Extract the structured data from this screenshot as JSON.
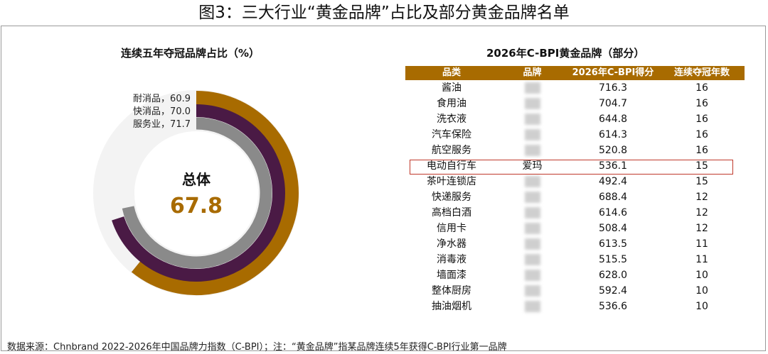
{
  "title": "图3：三大行业“黄金品牌”占比及部分黄金品牌名单",
  "chart_data": [
    {
      "type": "radial-bar",
      "title": "连续五年夺冠品牌占比（%）",
      "unit": "%",
      "max": 100,
      "series": [
        {
          "name": "耐消品",
          "label": "耐消品，60.9",
          "value": 60.9,
          "color": "#a86b00"
        },
        {
          "name": "快消品",
          "label": "快消品，70.0",
          "value": 70.0,
          "color": "#4a1a45"
        },
        {
          "name": "服务业",
          "label": "服务业，71.7",
          "value": 71.7,
          "color": "#8a8a8a"
        }
      ],
      "center": {
        "label": "总体",
        "value": "67.8"
      }
    },
    {
      "type": "table",
      "title": "2026年C-BPI黄金品牌（部分）",
      "columns": [
        "品类",
        "品牌",
        "2026年C-BPI得分",
        "连续夺冠年数"
      ],
      "rows": [
        [
          "酱油",
          "",
          "716.3",
          "16"
        ],
        [
          "食用油",
          "",
          "704.7",
          "16"
        ],
        [
          "洗衣液",
          "",
          "644.8",
          "16"
        ],
        [
          "汽车保险",
          "",
          "614.3",
          "16"
        ],
        [
          "航空服务",
          "",
          "520.8",
          "16"
        ],
        [
          "电动自行车",
          "爱玛",
          "536.1",
          "15"
        ],
        [
          "茶叶连锁店",
          "",
          "492.4",
          "15"
        ],
        [
          "快递服务",
          "",
          "688.4",
          "12"
        ],
        [
          "高档白酒",
          "",
          "614.6",
          "12"
        ],
        [
          "信用卡",
          "",
          "508.4",
          "12"
        ],
        [
          "净水器",
          "",
          "613.5",
          "11"
        ],
        [
          "消毒液",
          "",
          "515.5",
          "11"
        ],
        [
          "墙面漆",
          "",
          "628.0",
          "10"
        ],
        [
          "整体厨房",
          "",
          "592.4",
          "10"
        ],
        [
          "抽油烟机",
          "",
          "536.6",
          "10"
        ]
      ],
      "highlight_row": 5,
      "header_color": "#a86b00",
      "highlight_color": "#c0392b"
    }
  ],
  "source": "数据来源：Chnbrand 2022-2026年中国品牌力指数（C-BPI）；注：“黄金品牌”指某品牌连续5年获得C-BPI行业第一品牌"
}
